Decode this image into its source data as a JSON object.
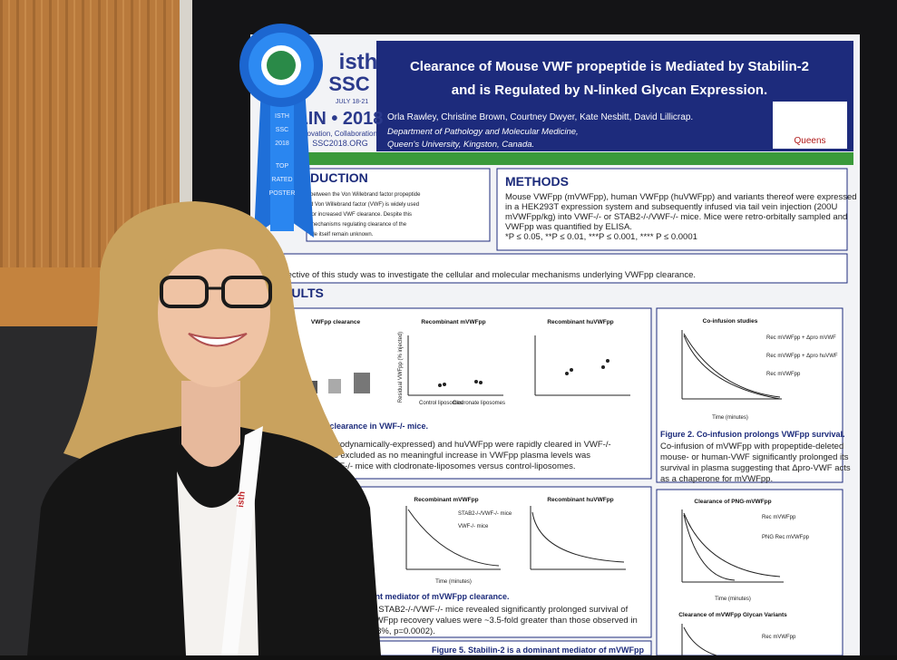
{
  "logo": {
    "brand": "isth",
    "event": "SSC",
    "dates": "JULY 18-21",
    "city_year": "LIN • 2018",
    "tagline": "novation, Collaboration",
    "url": "SSC2018.ORG"
  },
  "ribbon": [
    "ISTH",
    "SSC",
    "2018",
    "TOP",
    "RATED",
    "POSTER"
  ],
  "poster": {
    "title": [
      "Clearance of Mouse VWF propeptide is Mediated by Stabilin-2",
      "and is Regulated by N-linked Glycan Expression."
    ],
    "authors": "Orla Rawley, Christine Brown, Courtney Dwyer, Kate Nesbitt, David Lillicrap.",
    "affiliation": [
      "Department of Pathology and Molecular Medicine,",
      "Queen's University, Kingston, Canada."
    ],
    "institution": "Queens",
    "introduction": {
      "heading": "DUCTION",
      "text": [
        "between the Von Willebrand factor propeptide",
        "d Von Willebrand factor (VWF) is widely used",
        "for increased VWF clearance. Despite this",
        "mechanisms regulating clearance of the",
        "ide itself remain unknown."
      ]
    },
    "methods": {
      "heading": "METHODS",
      "text": [
        "Mouse VWFpp (mVWFpp), human VWFpp (huVWFpp) and variants thereof were expressed",
        "in a HEK293T expression system and subsequently infused via tail vein injection (200U",
        "mVWFpp/kg) into VWF-/- or STAB2-/-/VWF-/- mice. Mice were retro-orbitally sampled and",
        "VWFpp was quantified by ELISA.",
        "*P ≤ 0.05, **P ≤ 0.01, ***P ≤ 0.001, **** P ≤ 0.0001"
      ]
    },
    "aim": {
      "heading": "IM",
      "text": "e objective of this study was to investigate the cellular and molecular mechanisms underlying VWFpp clearance."
    },
    "results": {
      "heading": "SULTS",
      "panel1": {
        "charts": [
          "VWFpp clearance",
          "Recombinant mVWFpp",
          "Recombinant huVWFpp"
        ],
        "groups": [
          "Control liposomes",
          "Clodronate liposomes"
        ],
        "ylabel": "Residual VWFpp (% injected)",
        "caption": "d VWFpp clearance in VWF-/- mice.",
        "text": [
          "ent and hydrodynamically-expressed) and huVWFpp were rapidly cleared in VWF-/-",
          "phages was excluded as no meaningful increase in VWFpp plasma levels was",
          "tment of VWF-/- mice with clodronate-liposomes versus control-liposomes."
        ]
      },
      "figure2": {
        "chart": "Co-infusion studies",
        "legend": [
          "Rec mVWFpp + Δpro mVWF",
          "Rec mVWFpp + Δpro huVWF",
          "Rec mVWFpp"
        ],
        "xlabel": "Time (minutes)",
        "caption": "Figure 2. Co-infusion prolongs VWFpp survival.",
        "text": [
          "Co-infusion of mVWFpp with propeptide-deleted",
          "mouse- or human-VWF significantly prolonged its",
          "survival in plasma suggesting that Δpro-VWF acts",
          "as a chaperone for mVWFpp."
        ]
      },
      "panel3": {
        "charts": [
          "Recombinant mVWFpp",
          "Recombinant huVWFpp"
        ],
        "legend": [
          "STAB2-/-/VWF-/- mice",
          "VWF-/- mice"
        ],
        "xlabel": "Time (minutes)",
        "caption": "rtant mediator of mVWFpp clearance.",
        "text": [
          "t in STAB2-/-/VWF-/- mice revealed significantly prolonged survival of",
          "nVWFpp recovery values were ~3.5-fold greater than those observed in",
          "±1.8%, p=0.0002)."
        ]
      },
      "figure4": {
        "chart": "Clearance of PNG-mVWFpp",
        "legend": [
          "Rec mVWFpp",
          "PNG Rec mVWFpp"
        ],
        "xlabel": "Time (minutes)"
      },
      "figure6": {
        "chart": "Clearance of mVWFpp Glycan Variants",
        "legend": [
          "Rec mVWFpp"
        ]
      },
      "figure5": "Figure 5. Stabilin-2 is a dominant mediator of mVWFpp"
    }
  },
  "lanyard": "isth"
}
